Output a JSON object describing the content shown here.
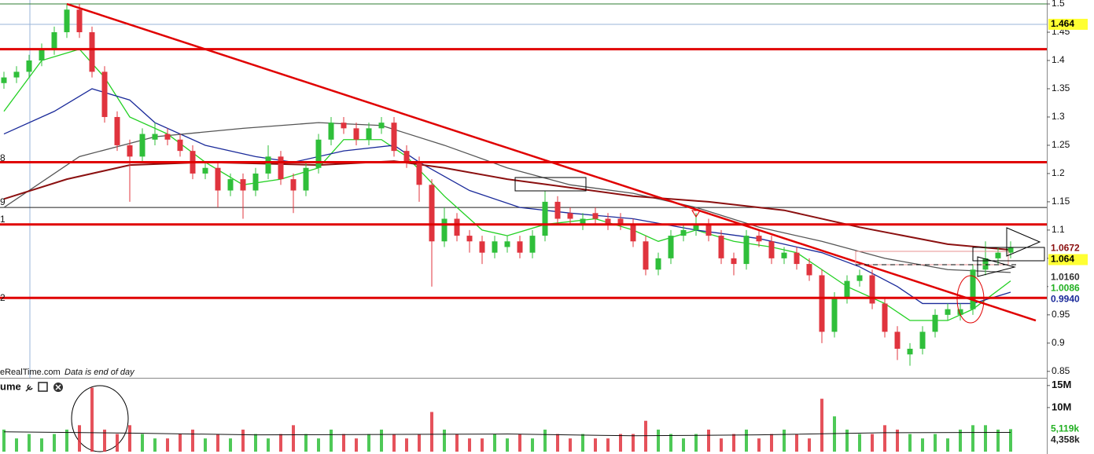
{
  "chart_data": {
    "type": "candlestick",
    "open": [
      1.36,
      1.37,
      1.38,
      1.4,
      1.42,
      1.45,
      1.49,
      1.45,
      1.38,
      1.3,
      1.25,
      1.23,
      1.26,
      1.27,
      1.26,
      1.24,
      1.2,
      1.21,
      1.17,
      1.19,
      1.17,
      1.2,
      1.23,
      1.19,
      1.17,
      1.21,
      1.26,
      1.29,
      1.28,
      1.26,
      1.28,
      1.29,
      1.24,
      1.22,
      1.18,
      1.08,
      1.12,
      1.09,
      1.08,
      1.06,
      1.07,
      1.08,
      1.06,
      1.09,
      1.15,
      1.13,
      1.11,
      1.13,
      1.12,
      1.12,
      1.11,
      1.08,
      1.03,
      1.05,
      1.09,
      1.1,
      1.11,
      1.09,
      1.05,
      1.04,
      1.09,
      1.08,
      1.05,
      1.06,
      1.04,
      1.02,
      0.92,
      0.98,
      1.01,
      1.02,
      0.97,
      0.92,
      0.88,
      0.89,
      0.92,
      0.95,
      0.95,
      0.96,
      1.03,
      1.05,
      1.06
    ],
    "high": [
      1.38,
      1.39,
      1.41,
      1.43,
      1.46,
      1.5,
      1.5,
      1.46,
      1.39,
      1.31,
      1.26,
      1.28,
      1.29,
      1.28,
      1.27,
      1.25,
      1.22,
      1.22,
      1.2,
      1.2,
      1.21,
      1.25,
      1.24,
      1.2,
      1.22,
      1.27,
      1.3,
      1.3,
      1.29,
      1.29,
      1.3,
      1.3,
      1.25,
      1.23,
      1.19,
      1.14,
      1.13,
      1.1,
      1.09,
      1.09,
      1.09,
      1.09,
      1.1,
      1.17,
      1.16,
      1.14,
      1.13,
      1.14,
      1.13,
      1.13,
      1.12,
      1.09,
      1.06,
      1.1,
      1.11,
      1.13,
      1.12,
      1.1,
      1.06,
      1.1,
      1.1,
      1.09,
      1.07,
      1.07,
      1.05,
      1.03,
      0.99,
      1.02,
      1.03,
      1.03,
      0.98,
      0.93,
      0.9,
      0.93,
      0.96,
      0.97,
      0.97,
      1.04,
      1.08,
      1.07,
      1.08
    ],
    "low": [
      1.35,
      1.36,
      1.37,
      1.39,
      1.41,
      1.44,
      1.44,
      1.37,
      1.29,
      1.24,
      1.15,
      1.22,
      1.25,
      1.25,
      1.23,
      1.19,
      1.19,
      1.14,
      1.16,
      1.12,
      1.16,
      1.19,
      1.18,
      1.13,
      1.16,
      1.2,
      1.25,
      1.27,
      1.25,
      1.25,
      1.27,
      1.23,
      1.21,
      1.15,
      1.0,
      1.07,
      1.08,
      1.06,
      1.04,
      1.05,
      1.06,
      1.05,
      1.05,
      1.08,
      1.11,
      1.11,
      1.1,
      1.11,
      1.1,
      1.1,
      1.07,
      1.02,
      1.02,
      1.04,
      1.08,
      1.09,
      1.08,
      1.04,
      1.02,
      1.03,
      1.07,
      1.04,
      1.04,
      1.03,
      1.01,
      0.9,
      0.91,
      0.97,
      1.0,
      0.96,
      0.91,
      0.87,
      0.86,
      0.88,
      0.91,
      0.94,
      0.94,
      0.95,
      1.02,
      1.04,
      1.05
    ],
    "close": [
      1.37,
      1.38,
      1.4,
      1.42,
      1.45,
      1.49,
      1.45,
      1.38,
      1.3,
      1.25,
      1.23,
      1.27,
      1.27,
      1.26,
      1.24,
      1.2,
      1.21,
      1.17,
      1.19,
      1.17,
      1.2,
      1.23,
      1.19,
      1.17,
      1.21,
      1.26,
      1.29,
      1.28,
      1.26,
      1.28,
      1.29,
      1.24,
      1.22,
      1.18,
      1.08,
      1.12,
      1.09,
      1.08,
      1.06,
      1.08,
      1.08,
      1.06,
      1.09,
      1.15,
      1.12,
      1.12,
      1.12,
      1.12,
      1.11,
      1.11,
      1.08,
      1.03,
      1.05,
      1.09,
      1.1,
      1.11,
      1.09,
      1.05,
      1.04,
      1.09,
      1.08,
      1.05,
      1.06,
      1.04,
      1.02,
      0.92,
      0.98,
      1.01,
      1.02,
      0.97,
      0.92,
      0.89,
      0.89,
      0.92,
      0.95,
      0.96,
      0.96,
      1.03,
      1.05,
      1.06,
      1.07
    ],
    "volume": [
      5,
      3,
      4,
      3,
      4,
      5,
      6,
      14.5,
      5,
      4,
      6,
      4,
      3,
      3,
      4,
      5,
      3,
      4,
      3,
      5,
      4,
      3,
      4,
      6,
      4,
      3,
      5,
      4,
      3,
      4,
      5,
      4,
      3,
      4,
      9,
      5,
      4,
      3,
      3,
      4,
      3,
      4,
      3,
      5,
      4,
      3,
      4,
      3,
      3,
      4,
      4,
      7,
      5,
      4,
      3,
      4,
      5,
      3,
      4,
      5,
      3,
      4,
      5,
      4,
      3,
      12,
      8,
      5,
      4,
      4,
      6,
      5,
      4,
      3,
      4,
      3,
      5,
      6,
      6,
      5,
      5.1
    ],
    "up_color": "#2fbf3a",
    "down_color": "#e0343e",
    "ylim": [
      0.84,
      1.507
    ],
    "yticks": [
      1.5,
      1.45,
      1.4,
      1.35,
      1.3,
      1.25,
      1.2,
      1.15,
      1.1,
      1.05,
      1,
      0.95,
      0.9,
      0.85
    ],
    "volume_ylim": [
      0,
      15.5
    ],
    "volume_yticks": [
      {
        "value": 15,
        "label": "15M"
      },
      {
        "value": 10,
        "label": "10M"
      }
    ],
    "overlays": [
      {
        "color": "#22d022",
        "x": [
          0,
          3,
          6,
          8,
          10,
          13,
          16,
          19,
          22,
          25,
          27,
          30,
          32,
          35,
          38,
          40,
          43,
          47,
          50,
          52,
          55,
          58,
          61,
          63,
          65,
          67,
          70,
          72,
          75,
          77,
          80
        ],
        "values": [
          1.31,
          1.4,
          1.42,
          1.37,
          1.3,
          1.27,
          1.22,
          1.18,
          1.19,
          1.21,
          1.26,
          1.26,
          1.23,
          1.16,
          1.1,
          1.09,
          1.11,
          1.12,
          1.1,
          1.08,
          1.1,
          1.08,
          1.07,
          1.06,
          1.03,
          1.0,
          0.97,
          0.94,
          0.94,
          0.96,
          1.01
        ]
      },
      {
        "color": "#1a2a9a",
        "x": [
          0,
          4,
          7,
          10,
          12,
          16,
          20,
          23,
          27,
          31,
          33,
          37,
          41,
          45,
          50,
          55,
          60,
          65,
          68,
          71,
          73,
          77,
          80
        ],
        "values": [
          1.27,
          1.31,
          1.35,
          1.33,
          1.29,
          1.25,
          1.23,
          1.22,
          1.24,
          1.25,
          1.22,
          1.17,
          1.14,
          1.13,
          1.12,
          1.1,
          1.085,
          1.06,
          1.035,
          1.0,
          0.97,
          0.97,
          0.99
        ]
      },
      {
        "color": "#555555",
        "x": [
          0,
          6,
          12,
          19,
          25,
          30,
          35,
          40,
          45,
          50,
          55,
          60,
          65,
          70,
          75,
          80
        ],
        "values": [
          1.14,
          1.23,
          1.265,
          1.28,
          1.29,
          1.285,
          1.25,
          1.21,
          1.18,
          1.165,
          1.14,
          1.105,
          1.08,
          1.05,
          1.03,
          1.025
        ]
      },
      {
        "color": "#8b1010",
        "x": [
          0,
          5,
          10,
          16,
          25,
          31,
          35,
          40,
          45,
          50,
          56,
          62,
          68,
          75,
          80
        ],
        "values": [
          1.155,
          1.19,
          1.215,
          1.22,
          1.215,
          1.222,
          1.21,
          1.19,
          1.175,
          1.16,
          1.15,
          1.135,
          1.105,
          1.075,
          1.065
        ]
      }
    ],
    "volume_overlay": {
      "color": "#111111",
      "x": [
        0,
        10,
        20,
        30,
        40,
        50,
        60,
        70,
        80
      ],
      "values": [
        4.5,
        4.2,
        3.8,
        3.9,
        4.0,
        3.6,
        3.8,
        4.3,
        4.36
      ]
    },
    "levels": [
      1.42,
      1.22,
      1.11,
      0.98
    ],
    "level_color": "#e00000",
    "lines": [
      {
        "value": 1.5,
        "color": "#2e7d32"
      },
      {
        "value": 1.464,
        "color": "#9ab4d8"
      },
      {
        "value": 1.14,
        "color": "#222222"
      }
    ],
    "trendline": {
      "color": "#e00000",
      "x": [
        5,
        82
      ],
      "values": [
        1.5,
        0.94
      ]
    },
    "price_badges": [
      {
        "value": 1.464,
        "label": "1.464",
        "bg": "#ffff33",
        "fg": "#000000"
      },
      {
        "value": 1.0672,
        "label": "1.0672",
        "bg": "#ffffff",
        "fg": "#8b1010"
      },
      {
        "value": 1.064,
        "label": "1.064",
        "bg": "#ffff33",
        "fg": "#000000"
      },
      {
        "value": 1.016,
        "label": "1.0160",
        "bg": "#ffffff",
        "fg": "#333333"
      },
      {
        "value": 1.0086,
        "label": "1.0086",
        "bg": "#ffffff",
        "fg": "#22b022"
      },
      {
        "value": 0.994,
        "label": "0.9940",
        "bg": "#ffffff",
        "fg": "#1a2a9a"
      }
    ],
    "volume_badges": [
      {
        "value": 5.119,
        "label": "5,119k",
        "bg": "#ffffff",
        "fg": "#22b022"
      },
      {
        "value": 4.358,
        "label": "4,358k",
        "bg": "#ffffff",
        "fg": "#222222"
      }
    ],
    "left_labels": [
      "8",
      "9",
      "1",
      "2"
    ],
    "source": "eRealTime.com",
    "note": "Data is end of day",
    "volume_title": "ume"
  }
}
